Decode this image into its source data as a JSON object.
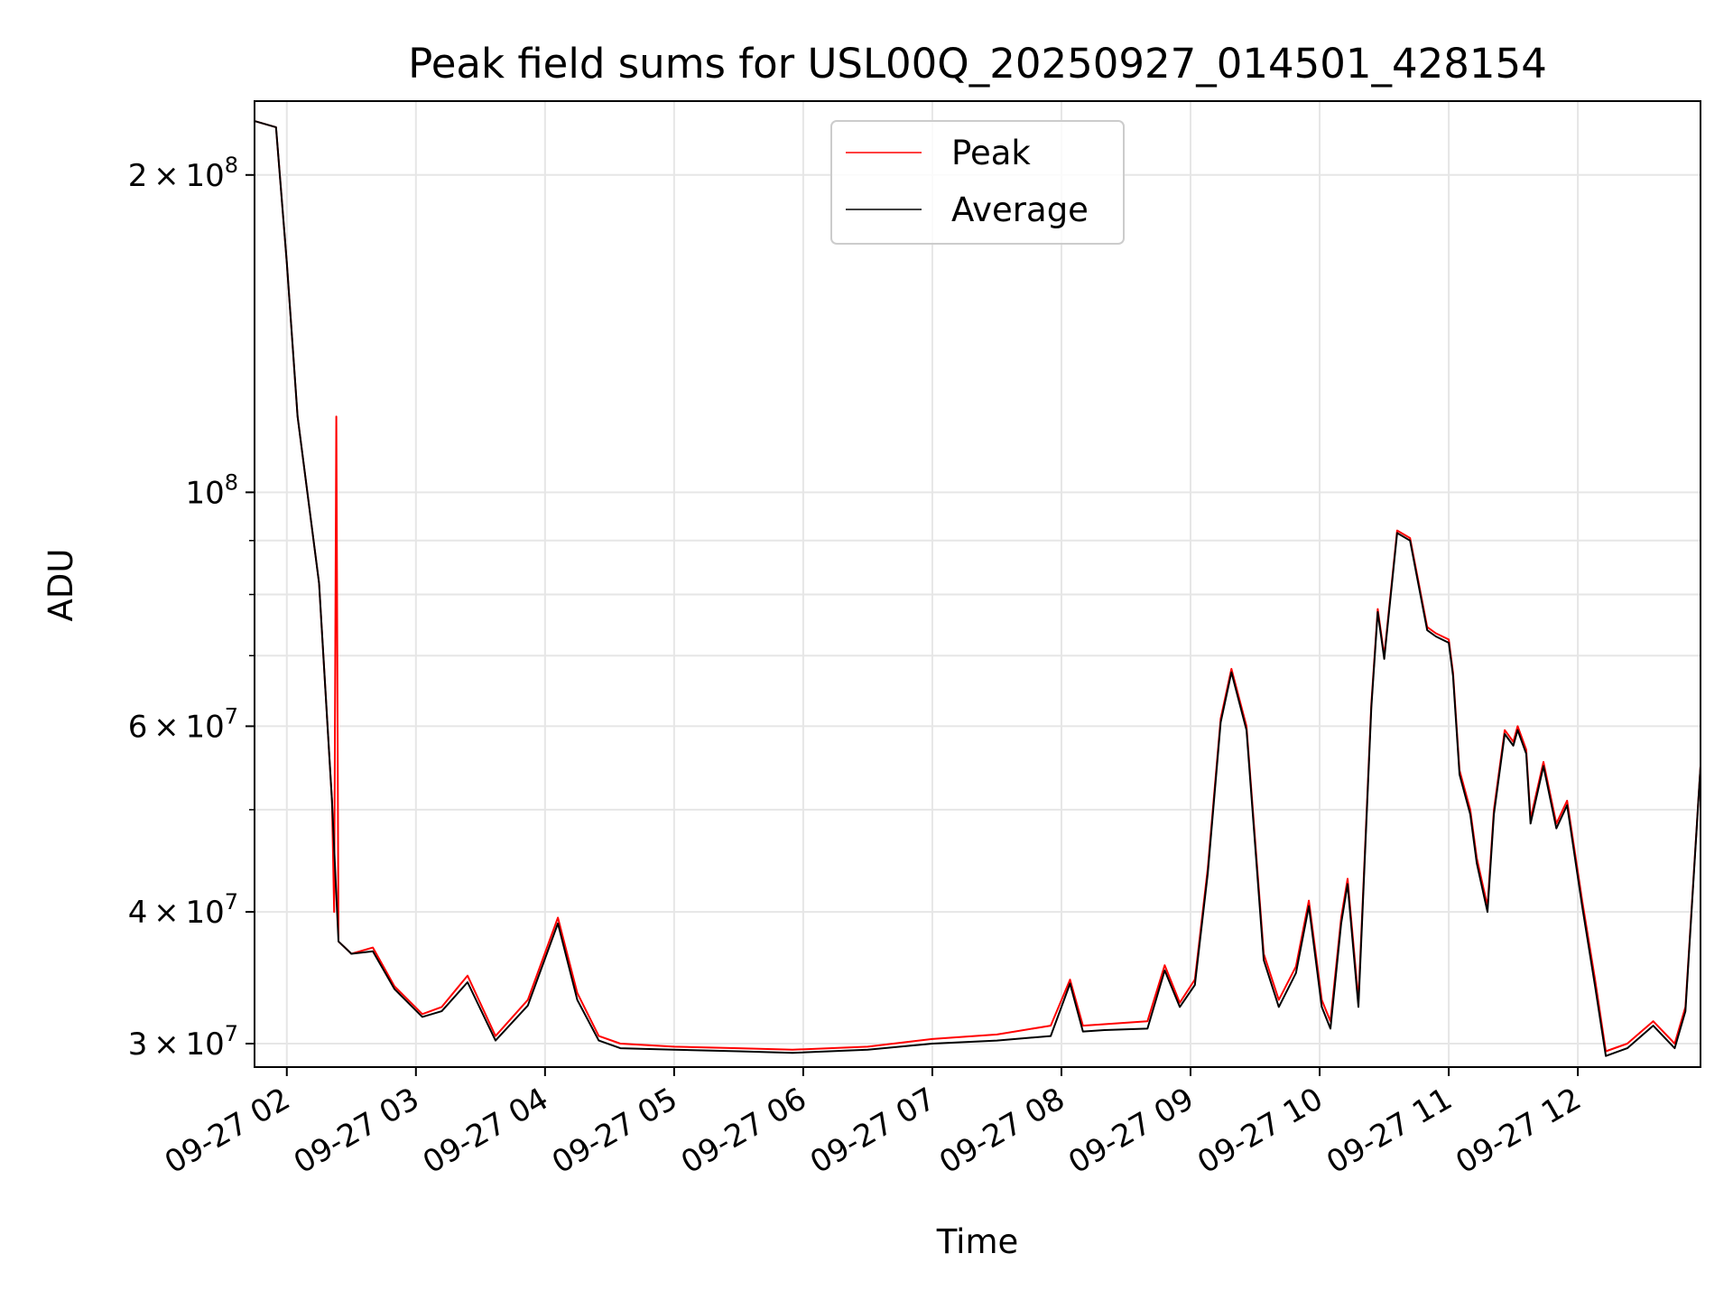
{
  "chart_data": {
    "type": "line",
    "title": "Peak field sums for USL00Q_20250927_014501_428154",
    "xlabel": "Time",
    "ylabel": "ADU",
    "yscale": "log",
    "grid": true,
    "legend": {
      "placement": "top-center",
      "entries": [
        "Peak",
        "Average"
      ]
    },
    "xlim": [
      "2025-09-27 01:45",
      "2025-09-27 12:57"
    ],
    "ylim": [
      28500000,
      235000000
    ],
    "x_ticks": [
      {
        "value": "2025-09-27 02:00",
        "label": "09-27 02"
      },
      {
        "value": "2025-09-27 03:00",
        "label": "09-27 03"
      },
      {
        "value": "2025-09-27 04:00",
        "label": "09-27 04"
      },
      {
        "value": "2025-09-27 05:00",
        "label": "09-27 05"
      },
      {
        "value": "2025-09-27 06:00",
        "label": "09-27 06"
      },
      {
        "value": "2025-09-27 07:00",
        "label": "09-27 07"
      },
      {
        "value": "2025-09-27 08:00",
        "label": "09-27 08"
      },
      {
        "value": "2025-09-27 09:00",
        "label": "09-27 09"
      },
      {
        "value": "2025-09-27 10:00",
        "label": "09-27 10"
      },
      {
        "value": "2025-09-27 11:00",
        "label": "09-27 11"
      },
      {
        "value": "2025-09-27 12:00",
        "label": "09-27 12"
      }
    ],
    "y_ticks_major": [
      {
        "value": 30000000,
        "mant": "3",
        "exp": "7"
      },
      {
        "value": 40000000,
        "mant": "4",
        "exp": "7"
      },
      {
        "value": 60000000,
        "mant": "6",
        "exp": "7"
      },
      {
        "value": 100000000,
        "mant": "",
        "exp": "8"
      },
      {
        "value": 200000000,
        "mant": "2",
        "exp": "8"
      }
    ],
    "y_ticks_minor": [
      50000000,
      70000000,
      80000000,
      90000000
    ],
    "series": [
      {
        "name": "Peak",
        "color": "#ff0000",
        "x": [
          "2025-09-27 01:45",
          "2025-09-27 01:55",
          "2025-09-27 02:00",
          "2025-09-27 02:05",
          "2025-09-27 02:15",
          "2025-09-27 02:21",
          "2025-09-27 02:22",
          "2025-09-27 02:23",
          "2025-09-27 02:24",
          "2025-09-27 02:30",
          "2025-09-27 02:40",
          "2025-09-27 02:50",
          "2025-09-27 03:03",
          "2025-09-27 03:12",
          "2025-09-27 03:24",
          "2025-09-27 03:37",
          "2025-09-27 03:52",
          "2025-09-27 04:06",
          "2025-09-27 04:15",
          "2025-09-27 04:25",
          "2025-09-27 04:35",
          "2025-09-27 05:00",
          "2025-09-27 05:30",
          "2025-09-27 05:55",
          "2025-09-27 06:30",
          "2025-09-27 07:00",
          "2025-09-27 07:30",
          "2025-09-27 07:55",
          "2025-09-27 08:04",
          "2025-09-27 08:10",
          "2025-09-27 08:20",
          "2025-09-27 08:40",
          "2025-09-27 08:48",
          "2025-09-27 08:55",
          "2025-09-27 09:02",
          "2025-09-27 09:08",
          "2025-09-27 09:14",
          "2025-09-27 09:19",
          "2025-09-27 09:26",
          "2025-09-27 09:34",
          "2025-09-27 09:41",
          "2025-09-27 09:49",
          "2025-09-27 09:55",
          "2025-09-27 10:01",
          "2025-09-27 10:05",
          "2025-09-27 10:10",
          "2025-09-27 10:13",
          "2025-09-27 10:18",
          "2025-09-27 10:24",
          "2025-09-27 10:27",
          "2025-09-27 10:30",
          "2025-09-27 10:36",
          "2025-09-27 10:42",
          "2025-09-27 10:50",
          "2025-09-27 10:54",
          "2025-09-27 11:00",
          "2025-09-27 11:02",
          "2025-09-27 11:05",
          "2025-09-27 11:10",
          "2025-09-27 11:13",
          "2025-09-27 11:18",
          "2025-09-27 11:21",
          "2025-09-27 11:26",
          "2025-09-27 11:30",
          "2025-09-27 11:32",
          "2025-09-27 11:36",
          "2025-09-27 11:38",
          "2025-09-27 11:44",
          "2025-09-27 11:50",
          "2025-09-27 11:55",
          "2025-09-27 12:02",
          "2025-09-27 12:08",
          "2025-09-27 12:13",
          "2025-09-27 12:23",
          "2025-09-27 12:35",
          "2025-09-27 12:45",
          "2025-09-27 12:50",
          "2025-09-27 12:57"
        ],
        "y": [
          225000000,
          222000000,
          165000000,
          118000000,
          82000000,
          51000000,
          40000000,
          118000000,
          37500000,
          36500000,
          37000000,
          34000000,
          32000000,
          32500000,
          34800000,
          30500000,
          33000000,
          39500000,
          33500000,
          30500000,
          30000000,
          29800000,
          29700000,
          29600000,
          29800000,
          30300000,
          30600000,
          31200000,
          34500000,
          31200000,
          31300000,
          31500000,
          35600000,
          32800000,
          34500000,
          44000000,
          61000000,
          68000000,
          60000000,
          36500000,
          33000000,
          35500000,
          41000000,
          33000000,
          31500000,
          39500000,
          43000000,
          33000000,
          63000000,
          77500000,
          70000000,
          92000000,
          90500000,
          74500000,
          73500000,
          72500000,
          67500000,
          54500000,
          50000000,
          45000000,
          40500000,
          50000000,
          59500000,
          58000000,
          60000000,
          57000000,
          49000000,
          55500000,
          48500000,
          51000000,
          41000000,
          34500000,
          29500000,
          30000000,
          31500000,
          30000000,
          32500000,
          55000000
        ]
      },
      {
        "name": "Average",
        "color": "#000000",
        "x": [
          "2025-09-27 01:45",
          "2025-09-27 01:55",
          "2025-09-27 02:00",
          "2025-09-27 02:05",
          "2025-09-27 02:15",
          "2025-09-27 02:21",
          "2025-09-27 02:24",
          "2025-09-27 02:30",
          "2025-09-27 02:40",
          "2025-09-27 02:50",
          "2025-09-27 03:03",
          "2025-09-27 03:12",
          "2025-09-27 03:24",
          "2025-09-27 03:37",
          "2025-09-27 03:52",
          "2025-09-27 04:06",
          "2025-09-27 04:15",
          "2025-09-27 04:25",
          "2025-09-27 04:35",
          "2025-09-27 05:00",
          "2025-09-27 05:30",
          "2025-09-27 05:55",
          "2025-09-27 06:30",
          "2025-09-27 07:00",
          "2025-09-27 07:30",
          "2025-09-27 07:55",
          "2025-09-27 08:04",
          "2025-09-27 08:10",
          "2025-09-27 08:20",
          "2025-09-27 08:40",
          "2025-09-27 08:48",
          "2025-09-27 08:55",
          "2025-09-27 09:02",
          "2025-09-27 09:08",
          "2025-09-27 09:14",
          "2025-09-27 09:19",
          "2025-09-27 09:26",
          "2025-09-27 09:34",
          "2025-09-27 09:41",
          "2025-09-27 09:49",
          "2025-09-27 09:55",
          "2025-09-27 10:01",
          "2025-09-27 10:05",
          "2025-09-27 10:10",
          "2025-09-27 10:13",
          "2025-09-27 10:18",
          "2025-09-27 10:24",
          "2025-09-27 10:27",
          "2025-09-27 10:30",
          "2025-09-27 10:36",
          "2025-09-27 10:42",
          "2025-09-27 10:50",
          "2025-09-27 10:54",
          "2025-09-27 11:00",
          "2025-09-27 11:02",
          "2025-09-27 11:05",
          "2025-09-27 11:10",
          "2025-09-27 11:13",
          "2025-09-27 11:18",
          "2025-09-27 11:21",
          "2025-09-27 11:26",
          "2025-09-27 11:30",
          "2025-09-27 11:32",
          "2025-09-27 11:36",
          "2025-09-27 11:38",
          "2025-09-27 11:44",
          "2025-09-27 11:50",
          "2025-09-27 11:55",
          "2025-09-27 12:02",
          "2025-09-27 12:08",
          "2025-09-27 12:13",
          "2025-09-27 12:23",
          "2025-09-27 12:35",
          "2025-09-27 12:45",
          "2025-09-27 12:50",
          "2025-09-27 12:57"
        ],
        "y": [
          225000000,
          222000000,
          165000000,
          118000000,
          82000000,
          51000000,
          37500000,
          36500000,
          36700000,
          33800000,
          31800000,
          32200000,
          34300000,
          30200000,
          32600000,
          39000000,
          33000000,
          30200000,
          29700000,
          29600000,
          29500000,
          29400000,
          29600000,
          30000000,
          30200000,
          30500000,
          34200000,
          30800000,
          30900000,
          31000000,
          35200000,
          32500000,
          34100000,
          43500000,
          60500000,
          67500000,
          59500000,
          36000000,
          32500000,
          35000000,
          40500000,
          32500000,
          31000000,
          39000000,
          42500000,
          32500000,
          62500000,
          77000000,
          69500000,
          91500000,
          90000000,
          74000000,
          73000000,
          72000000,
          67000000,
          54000000,
          49500000,
          44500000,
          40000000,
          49500000,
          59000000,
          57500000,
          59500000,
          56500000,
          48500000,
          55000000,
          48000000,
          50500000,
          40500000,
          34000000,
          29200000,
          29700000,
          31200000,
          29700000,
          32200000,
          55000000
        ]
      }
    ]
  }
}
